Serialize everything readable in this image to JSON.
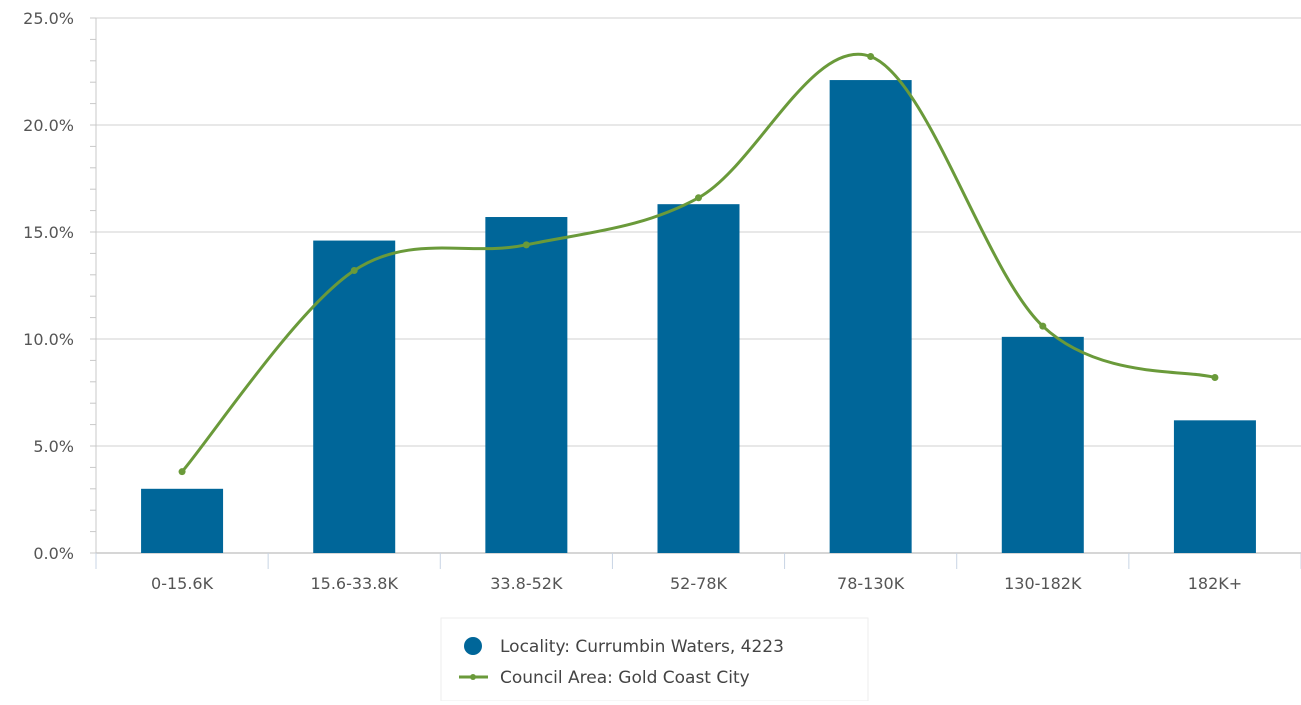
{
  "chart_data": {
    "type": "bar",
    "title": "",
    "xlabel": "",
    "ylabel": "",
    "categories": [
      "0-15.6K",
      "15.6-33.8K",
      "33.8-52K",
      "52-78K",
      "78-130K",
      "130-182K",
      "182K+"
    ],
    "yticks": [
      "0.0%",
      "5.0%",
      "10.0%",
      "15.0%",
      "20.0%",
      "25.0%"
    ],
    "ylim": [
      0,
      25
    ],
    "grid": true,
    "legend_position": "bottom",
    "series": [
      {
        "name": "Locality: Currumbin Waters, 4223",
        "type": "bar",
        "values": [
          3.0,
          14.6,
          15.7,
          16.3,
          22.1,
          10.1,
          6.2
        ],
        "color": "#006699"
      },
      {
        "name": "Council Area: Gold Coast City",
        "type": "line",
        "smooth": true,
        "values": [
          3.8,
          13.2,
          14.4,
          16.6,
          23.2,
          10.6,
          8.2
        ],
        "color": "#6a9a3a"
      }
    ]
  }
}
